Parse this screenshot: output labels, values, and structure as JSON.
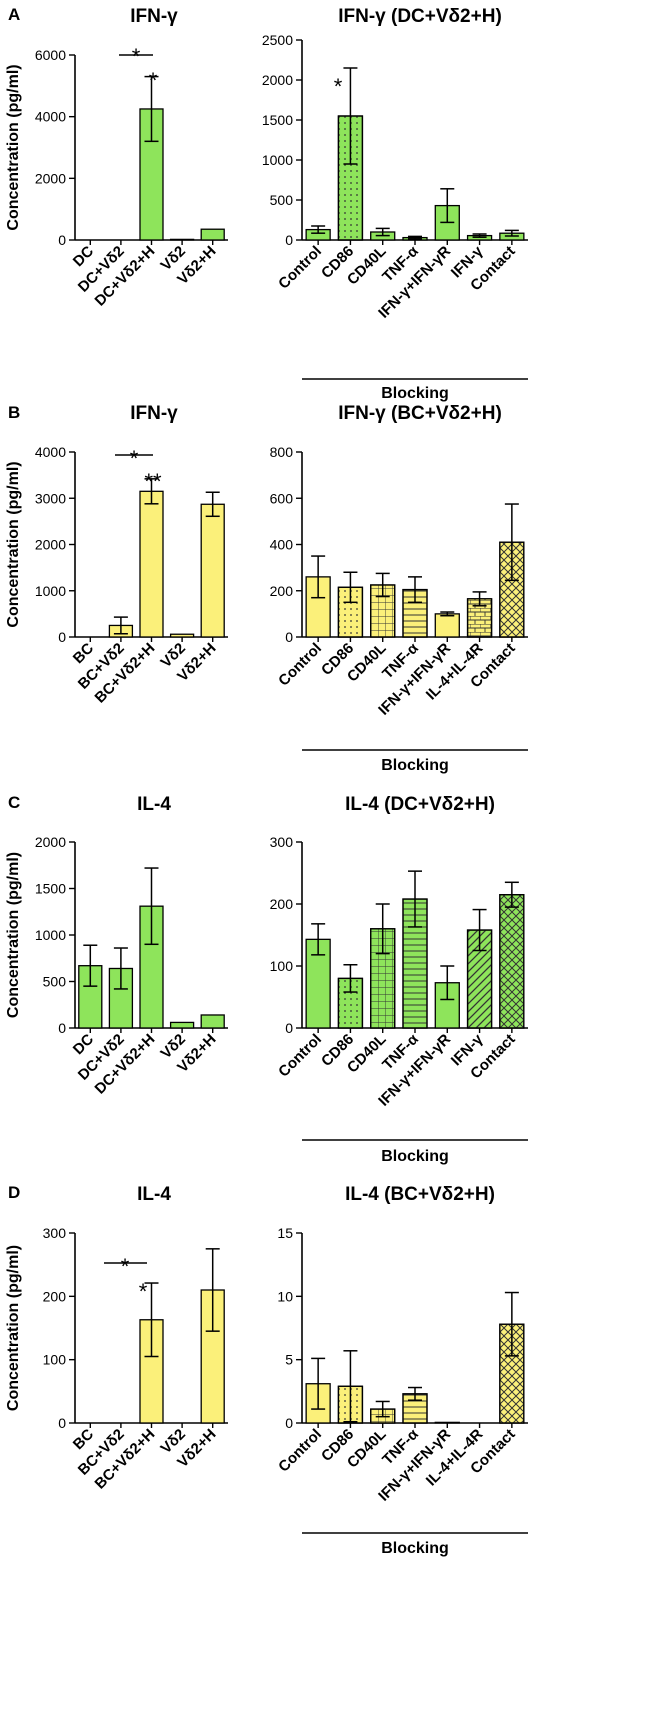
{
  "colors": {
    "green": "#8ee45b",
    "yellow": "#fbf07a",
    "axis": "#000000"
  },
  "chart_data": [
    {
      "panel": "A",
      "title": "IFN-γ",
      "type": "bar",
      "color": "green",
      "ylabel": "Concentration (pg/ml)",
      "ylim": [
        0,
        6000
      ],
      "yticks": [
        0,
        2000,
        4000,
        6000
      ],
      "categories": [
        "DC",
        "DC+Vδ2",
        "DC+Vδ2+H",
        "Vδ2",
        "Vδ2+H"
      ],
      "values": [
        0,
        0,
        4250,
        20,
        350
      ],
      "errors": [
        0,
        0,
        1050,
        0,
        0
      ],
      "annotations": [
        "*",
        "*"
      ]
    },
    {
      "panel": "A",
      "title": "IFN-γ (DC+Vδ2+H)",
      "type": "bar",
      "color": "green",
      "ylim": [
        0,
        2500
      ],
      "yticks": [
        0,
        500,
        1000,
        1500,
        2000,
        2500
      ],
      "categories": [
        "Control",
        "CD86",
        "CD40L",
        "TNF-α",
        "IFN-γ+IFN-γR",
        "IFN-γ",
        "Contact"
      ],
      "values": [
        130,
        1550,
        100,
        30,
        430,
        55,
        85
      ],
      "errors": [
        45,
        600,
        45,
        15,
        210,
        20,
        35
      ],
      "patterns": [
        "solid",
        "dots",
        "solid",
        "solid",
        "solid",
        "solid",
        "solid"
      ],
      "annotations": [
        "*"
      ],
      "group_label": "Blocking"
    },
    {
      "panel": "B",
      "title": "IFN-γ",
      "type": "bar",
      "color": "yellow",
      "ylabel": "Concentration (pg/ml)",
      "ylim": [
        0,
        4000
      ],
      "yticks": [
        0,
        1000,
        2000,
        3000,
        4000
      ],
      "categories": [
        "BC",
        "BC+Vδ2",
        "BC+Vδ2+H",
        "Vδ2",
        "Vδ2+H"
      ],
      "values": [
        0,
        250,
        3150,
        60,
        2870
      ],
      "errors": [
        0,
        180,
        270,
        0,
        260
      ],
      "annotations": [
        "*",
        "**"
      ]
    },
    {
      "panel": "B",
      "title": "IFN-γ (BC+Vδ2+H)",
      "type": "bar",
      "color": "yellow",
      "ylim": [
        0,
        800
      ],
      "yticks": [
        0,
        200,
        400,
        600,
        800
      ],
      "categories": [
        "Control",
        "CD86",
        "CD40L",
        "TNF-α",
        "IFN-γ+IFN-γR",
        "IL-4+IL-4R",
        "Contact"
      ],
      "values": [
        260,
        215,
        225,
        205,
        100,
        165,
        410
      ],
      "errors": [
        90,
        65,
        50,
        55,
        8,
        30,
        165
      ],
      "patterns": [
        "solid",
        "dots",
        "grid",
        "hlines",
        "solid",
        "brick",
        "crosshatch"
      ],
      "group_label": "Blocking"
    },
    {
      "panel": "C",
      "title": "IL-4",
      "type": "bar",
      "color": "green",
      "ylabel": "Concentration (pg/ml)",
      "ylim": [
        0,
        2000
      ],
      "yticks": [
        0,
        500,
        1000,
        1500,
        2000
      ],
      "categories": [
        "DC",
        "DC+Vδ2",
        "DC+Vδ2+H",
        "Vδ2",
        "Vδ2+H"
      ],
      "values": [
        670,
        640,
        1310,
        60,
        140
      ],
      "errors": [
        220,
        220,
        410,
        0,
        0
      ]
    },
    {
      "panel": "C",
      "title": "IL-4 (DC+Vδ2+H)",
      "type": "bar",
      "color": "green",
      "ylim": [
        0,
        300
      ],
      "yticks": [
        0,
        100,
        200,
        300
      ],
      "categories": [
        "Control",
        "CD86",
        "CD40L",
        "TNF-α",
        "IFN-γ+IFN-γR",
        "IFN-γ",
        "Contact"
      ],
      "values": [
        143,
        80,
        160,
        208,
        73,
        158,
        215
      ],
      "errors": [
        25,
        22,
        40,
        45,
        27,
        33,
        20
      ],
      "patterns": [
        "solid",
        "dots",
        "grid",
        "hlines",
        "solid",
        "diag",
        "crosshatch"
      ],
      "group_label": "Blocking"
    },
    {
      "panel": "D",
      "title": "IL-4",
      "type": "bar",
      "color": "yellow",
      "ylabel": "Concentration (pg/ml)",
      "ylim": [
        0,
        300
      ],
      "yticks": [
        0,
        100,
        200,
        300
      ],
      "categories": [
        "BC",
        "BC+Vδ2",
        "BC+Vδ2+H",
        "Vδ2",
        "Vδ2+H"
      ],
      "values": [
        0,
        0,
        163,
        0,
        210
      ],
      "errors": [
        0,
        0,
        58,
        0,
        65
      ],
      "annotations": [
        "*",
        "*"
      ]
    },
    {
      "panel": "D",
      "title": "IL-4 (BC+Vδ2+H)",
      "type": "bar",
      "color": "yellow",
      "ylim": [
        0,
        15
      ],
      "yticks": [
        0,
        5,
        10,
        15
      ],
      "categories": [
        "Control",
        "CD86",
        "CD40L",
        "TNF-α",
        "IFN-γ+IFN-γR",
        "IL-4+IL-4R",
        "Contact"
      ],
      "values": [
        3.1,
        2.9,
        1.1,
        2.3,
        0.05,
        0,
        7.8
      ],
      "errors": [
        2.0,
        2.8,
        0.6,
        0.5,
        0,
        0,
        2.5
      ],
      "patterns": [
        "solid",
        "dots",
        "grid",
        "hlines",
        "solid",
        "solid",
        "crosshatch"
      ],
      "group_label": "Blocking"
    }
  ]
}
